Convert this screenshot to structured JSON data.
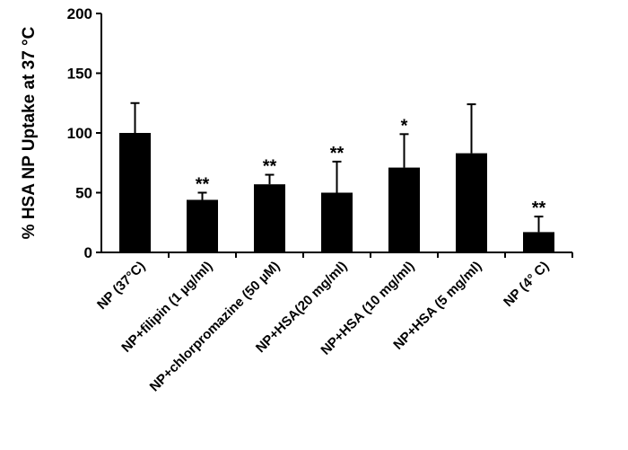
{
  "chart_data": {
    "type": "bar",
    "title": "",
    "xlabel": "",
    "ylabel": "% HSA NP Uptake at 37 °C",
    "ylim": [
      0,
      200
    ],
    "yticks": [
      0,
      50,
      100,
      150,
      200
    ],
    "categories": [
      "NP (37°C)",
      "NP+filipin (1 µg/ml)",
      "NP+chlorpromazine (50 µM)",
      "NP+HSA(20 mg/ml)",
      "NP+HSA (10 mg/ml)",
      "NP+HSA (5 mg/ml)",
      "NP (4° C)"
    ],
    "values": [
      100,
      44,
      57,
      50,
      71,
      83,
      17
    ],
    "errors": [
      25,
      6,
      8,
      26,
      28,
      41,
      13
    ],
    "significance": [
      "",
      "**",
      "**",
      "**",
      "*",
      "",
      "**"
    ],
    "colors": {
      "bar": "#000000",
      "axis": "#000000",
      "background": "#ffffff"
    }
  }
}
